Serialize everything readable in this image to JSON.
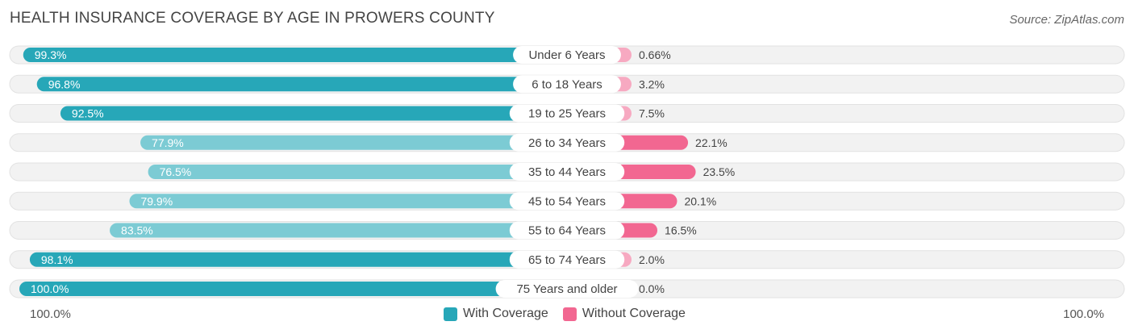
{
  "title": "HEALTH INSURANCE COVERAGE BY AGE IN PROWERS COUNTY",
  "source": "Source: ZipAtlas.com",
  "colors": {
    "with_dark": "#27a7b8",
    "with_light": "#7ccbd4",
    "without_dark": "#f26791",
    "without_light": "#f7a9c1",
    "track": "#f2f2f2"
  },
  "legend": {
    "with": "With Coverage",
    "without": "Without Coverage"
  },
  "axis": {
    "left": "100.0%",
    "right": "100.0%"
  },
  "chart_data": {
    "type": "bar",
    "orientation": "horizontal-diverging",
    "title": "HEALTH INSURANCE COVERAGE BY AGE IN PROWERS COUNTY",
    "categories": [
      "Under 6 Years",
      "6 to 18 Years",
      "19 to 25 Years",
      "26 to 34 Years",
      "35 to 44 Years",
      "45 to 54 Years",
      "55 to 64 Years",
      "65 to 74 Years",
      "75 Years and older"
    ],
    "series": [
      {
        "name": "With Coverage",
        "values": [
          99.3,
          96.8,
          92.5,
          77.9,
          76.5,
          79.9,
          83.5,
          98.1,
          100.0
        ],
        "labels": [
          "99.3%",
          "96.8%",
          "92.5%",
          "77.9%",
          "76.5%",
          "79.9%",
          "83.5%",
          "98.1%",
          "100.0%"
        ]
      },
      {
        "name": "Without Coverage",
        "values": [
          0.66,
          3.2,
          7.5,
          22.1,
          23.5,
          20.1,
          16.5,
          2.0,
          0.0
        ],
        "labels": [
          "0.66%",
          "3.2%",
          "7.5%",
          "22.1%",
          "23.5%",
          "20.1%",
          "16.5%",
          "2.0%",
          "0.0%"
        ]
      }
    ],
    "xlim": [
      0,
      100
    ],
    "legend_position": "bottom-center"
  }
}
